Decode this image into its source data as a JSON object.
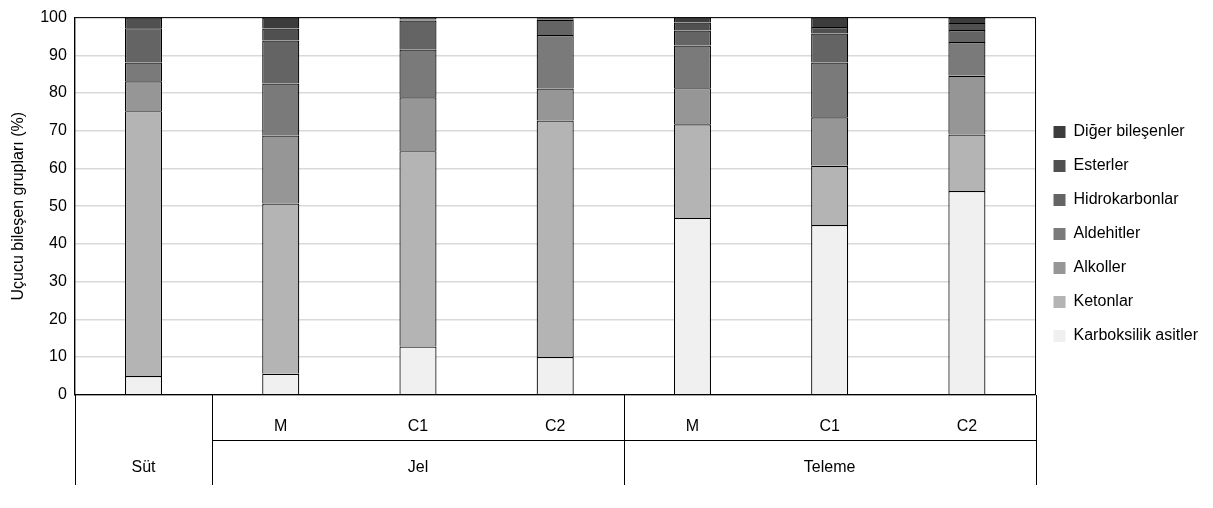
{
  "chart_data": {
    "type": "bar",
    "stacked": true,
    "ylabel": "Uçucu bileşen grupları (%)",
    "categories": [
      null,
      "M",
      "C1",
      "C2",
      "M",
      "C1",
      "C2"
    ],
    "annotations": [
      "Süt",
      "Jel",
      "Teleme"
    ],
    "series": [
      {
        "name": "Karboksilik asitler",
        "color": "#f0f0f0",
        "values": [
          5.0,
          5.6,
          12.8,
          10.0,
          46.9,
          45.0,
          54.0
        ]
      },
      {
        "name": "Ketonlar",
        "color": "#b4b4b4",
        "values": [
          70.2,
          45.1,
          51.8,
          62.7,
          24.8,
          15.7,
          15.0
        ]
      },
      {
        "name": "Alkoller",
        "color": "#969696",
        "values": [
          7.9,
          18.0,
          14.3,
          8.5,
          9.6,
          12.9,
          15.6
        ]
      },
      {
        "name": "Aldehitler",
        "color": "#7a7a7a",
        "values": [
          5.0,
          13.8,
          12.6,
          14.2,
          11.3,
          14.5,
          8.9
        ]
      },
      {
        "name": "Hidrokarbonlar",
        "color": "#646464",
        "values": [
          9.1,
          11.4,
          7.7,
          4.0,
          4.0,
          7.7,
          3.2
        ]
      },
      {
        "name": "Esterler",
        "color": "#505050",
        "values": [
          2.8,
          3.2,
          0.3,
          0.4,
          2.1,
          1.7,
          1.9
        ]
      },
      {
        "name": "Diğer bileşenler",
        "color": "#3c3c3c",
        "values": [
          0,
          2.9,
          0.5,
          0.2,
          1.3,
          2.5,
          1.4
        ]
      }
    ],
    "ylim": [
      0,
      100
    ],
    "yticks": [
      0,
      10,
      20,
      30,
      40,
      50,
      60,
      70,
      80,
      90,
      100
    ],
    "grid": "y",
    "legend": "right"
  }
}
